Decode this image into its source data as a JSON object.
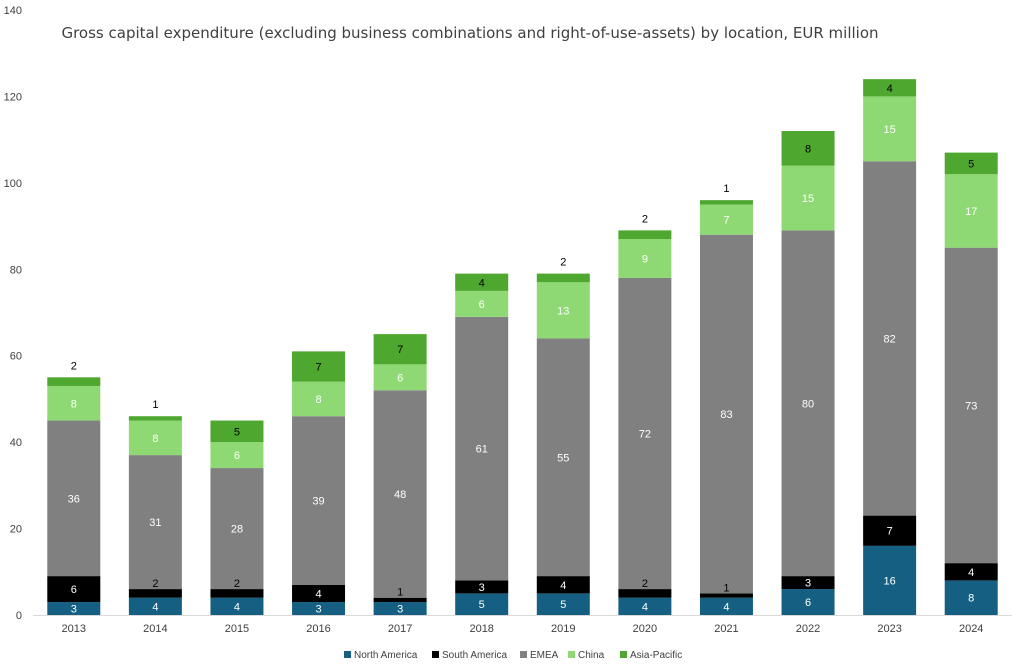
{
  "chart_data": {
    "type": "bar",
    "stacked": true,
    "title": "Gross capital expenditure (excluding business combinations and right-of-use-assets) by location, EUR million",
    "xlabel": "",
    "ylabel": "",
    "ylim": [
      0,
      140
    ],
    "yticks": [
      0,
      20,
      40,
      60,
      80,
      100,
      120,
      140
    ],
    "grid": false,
    "legend_position": "bottom",
    "categories": [
      "2013",
      "2014",
      "2015",
      "2016",
      "2017",
      "2018",
      "2019",
      "2020",
      "2021",
      "2022",
      "2023",
      "2024"
    ],
    "series": [
      {
        "name": "North America",
        "color": "#156082",
        "label_color": "#ffffff",
        "values": [
          3,
          4,
          4,
          3,
          3,
          5,
          5,
          4,
          4,
          6,
          16,
          8
        ]
      },
      {
        "name": "South America",
        "color": "#000000",
        "label_color": "#ffffff",
        "values": [
          6,
          2,
          2,
          4,
          1,
          3,
          4,
          2,
          1,
          3,
          7,
          4
        ]
      },
      {
        "name": "EMEA",
        "color": "#808080",
        "label_color": "#ffffff",
        "values": [
          36,
          31,
          28,
          39,
          48,
          61,
          55,
          72,
          83,
          80,
          82,
          73
        ]
      },
      {
        "name": "China",
        "color": "#8ED973",
        "label_color": "#ffffff",
        "values": [
          8,
          8,
          6,
          8,
          6,
          6,
          13,
          9,
          7,
          15,
          15,
          17
        ]
      },
      {
        "name": "Asia-Pacific",
        "color": "#4EA72E",
        "label_color": "#000000",
        "values": [
          2,
          1,
          5,
          7,
          7,
          4,
          2,
          2,
          1,
          8,
          4,
          5
        ]
      }
    ]
  }
}
